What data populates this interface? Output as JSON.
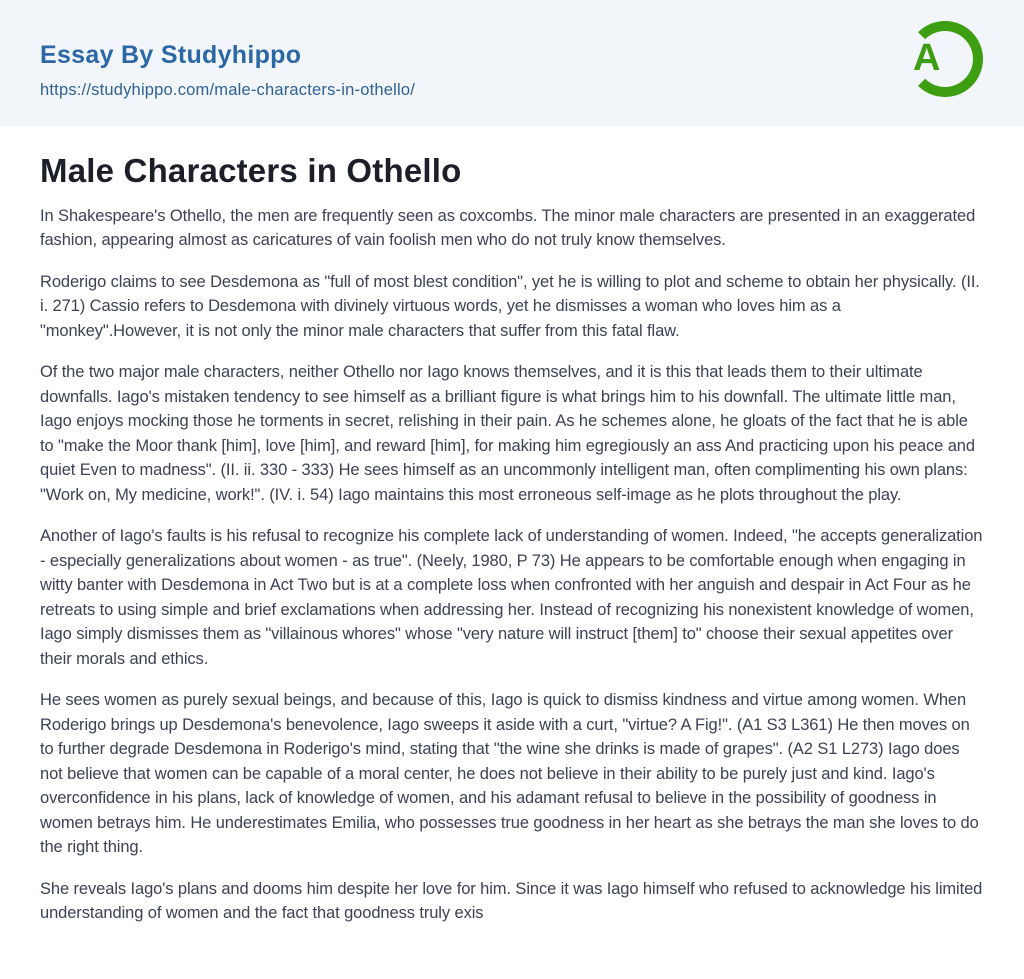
{
  "header": {
    "site_name": "Essay By Studyhippo",
    "url": "https://studyhippo.com/male-characters-in-othello/",
    "logo": {
      "letter": "A",
      "color": "#3c9e10"
    },
    "background": "#f2f5f9"
  },
  "colors": {
    "accent_blue": "#2c68a6",
    "url_blue": "#2f6294",
    "title_color": "#1c1f28",
    "body_text": "#3c4253"
  },
  "article": {
    "title": "Male Characters in Othello",
    "paragraphs": [
      "In Shakespeare's Othello, the men are frequently seen as coxcombs. The minor male characters are presented in an exaggerated fashion, appearing almost as caricatures of vain foolish men who do not truly know themselves.",
      "Roderigo claims to see Desdemona as \"full of most blest condition\", yet he is willing to plot and scheme to obtain her physically. (II. i. 271) Cassio refers to Desdemona with divinely virtuous words, yet he dismisses a woman who loves him as a \"monkey\".However, it is not only the minor male characters that suffer from this fatal flaw.",
      "Of the two major male characters, neither Othello nor Iago knows themselves, and it is this that leads them to their ultimate downfalls. Iago's mistaken tendency to see himself as a brilliant figure is what brings him to his downfall. The ultimate little man, Iago enjoys mocking those he torments in secret, relishing in their pain. As he schemes alone, he gloats of the fact that he is able to \"make the Moor thank [him], love [him], and reward [him], for making him egregiously an ass And practicing upon his peace and quiet Even to madness\". (II. ii. 330 - 333) He sees himself as an uncommonly intelligent man, often complimenting his own plans: \"Work on, My medicine, work!\". (IV. i. 54) Iago maintains this most erroneous self-image as he plots throughout the play.",
      "Another of Iago's faults is his refusal to recognize his complete lack of understanding of women. Indeed, \"he accepts generalization - especially generalizations about women - as true\". (Neely, 1980, P 73) He appears to be comfortable enough when engaging in witty banter with Desdemona in Act Two but is at a complete loss when confronted with her anguish and despair in Act Four as he retreats to using simple and brief exclamations when addressing her. Instead of recognizing his nonexistent knowledge of women, Iago simply dismisses them as \"villainous whores\" whose \"very nature will instruct [them] to\" choose their sexual appetites over their morals and ethics.",
      "He sees women as purely sexual beings, and because of this, Iago is quick to dismiss kindness and virtue among women. When Roderigo brings up Desdemona's benevolence, Iago sweeps it aside with a curt, \"virtue? A Fig!\". (A1 S3 L361) He then moves on to further degrade Desdemona in Roderigo's mind, stating that \"the wine she drinks is made of grapes\". (A2 S1 L273) Iago does not believe that women can be capable of a moral center, he does not believe in their ability to be purely just and kind. Iago's overconfidence in his plans, lack of knowledge of women, and his adamant refusal to believe in the possibility of goodness in women betrays him. He underestimates Emilia, who possesses true goodness in her heart as she betrays the man she loves to do the right thing.",
      "She reveals Iago's plans and dooms him despite her love for him. Since it was Iago himself who refused to acknowledge his limited understanding of women and the fact that goodness truly exis"
    ]
  }
}
